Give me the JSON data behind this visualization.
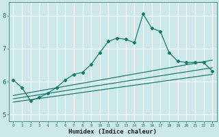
{
  "xlabel": "Humidex (Indice chaleur)",
  "bg_color": "#cce8e8",
  "grid_color": "#ffffff",
  "line_color": "#1a7a6e",
  "xlim": [
    -0.5,
    23.5
  ],
  "ylim": [
    4.8,
    8.4
  ],
  "yticks": [
    5,
    6,
    7,
    8
  ],
  "xticks": [
    0,
    1,
    2,
    3,
    4,
    5,
    6,
    7,
    8,
    9,
    10,
    11,
    12,
    13,
    14,
    15,
    16,
    17,
    18,
    19,
    20,
    21,
    22,
    23
  ],
  "main_x": [
    0,
    1,
    2,
    3,
    4,
    5,
    6,
    7,
    8,
    9,
    10,
    11,
    12,
    13,
    14,
    15,
    16,
    17,
    18,
    19,
    20,
    21,
    22,
    23
  ],
  "main_y": [
    6.05,
    5.82,
    5.42,
    5.52,
    5.65,
    5.82,
    6.05,
    6.22,
    6.28,
    6.52,
    6.88,
    7.22,
    7.32,
    7.28,
    7.18,
    8.05,
    7.62,
    7.52,
    6.88,
    6.62,
    6.58,
    6.58,
    6.58,
    6.32
  ],
  "line1_x": [
    0,
    23
  ],
  "line1_y": [
    5.58,
    6.65
  ],
  "line2_x": [
    0,
    23
  ],
  "line2_y": [
    5.48,
    6.42
  ],
  "line3_x": [
    0,
    23
  ],
  "line3_y": [
    5.38,
    6.22
  ]
}
